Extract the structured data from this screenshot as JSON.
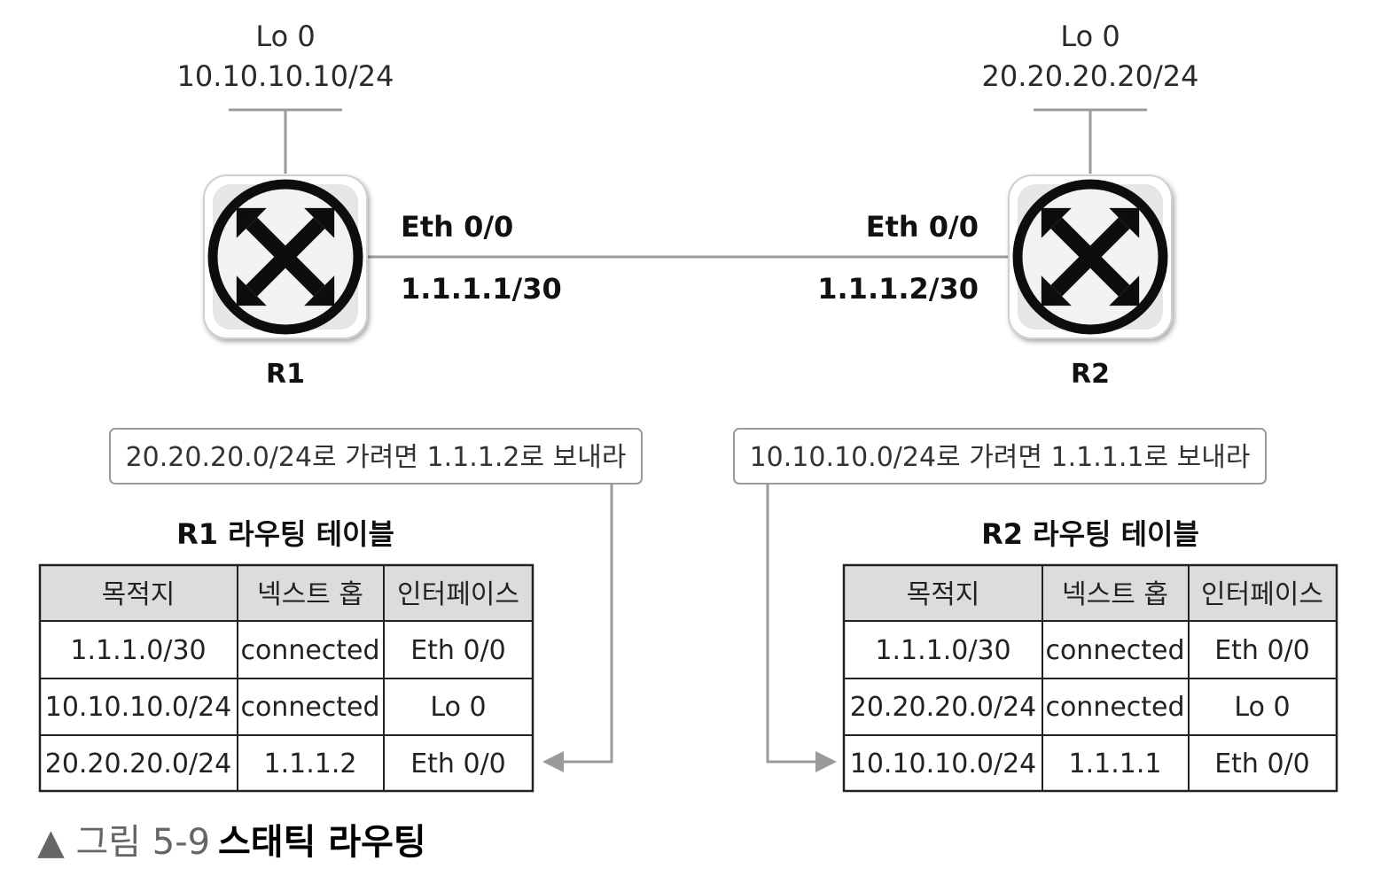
{
  "colors": {
    "line": "#9a9a9a",
    "router_ring": "#111111",
    "router_bg": "#e6e6e6",
    "table_header_bg": "#dcdcdc",
    "table_border": "#222222",
    "note_border": "#9a9a9a"
  },
  "r1": {
    "name": "R1",
    "loopback_label": "Lo 0",
    "loopback_ip": "10.10.10.10/24",
    "eth_label": "Eth 0/0",
    "eth_ip": "1.1.1.1/30",
    "icon": "router-icon"
  },
  "r2": {
    "name": "R2",
    "loopback_label": "Lo 0",
    "loopback_ip": "20.20.20.20/24",
    "eth_label": "Eth 0/0",
    "eth_ip": "1.1.1.2/30",
    "icon": "router-icon"
  },
  "notes": {
    "r1": "20.20.20.0/24로 가려면 1.1.1.2로 보내라",
    "r2": "10.10.10.0/24로 가려면 1.1.1.1로 보내라"
  },
  "tables": {
    "r1": {
      "title": "R1 라우팅 테이블",
      "headers": [
        "목적지",
        "넥스트 홉",
        "인터페이스"
      ],
      "rows": [
        [
          "1.1.1.0/30",
          "connected",
          "Eth 0/0"
        ],
        [
          "10.10.10.0/24",
          "connected",
          "Lo 0"
        ],
        [
          "20.20.20.0/24",
          "1.1.1.2",
          "Eth 0/0"
        ]
      ]
    },
    "r2": {
      "title": "R2 라우팅 테이블",
      "headers": [
        "목적지",
        "넥스트 홉",
        "인터페이스"
      ],
      "rows": [
        [
          "1.1.1.0/30",
          "connected",
          "Eth 0/0"
        ],
        [
          "20.20.20.0/24",
          "connected",
          "Lo 0"
        ],
        [
          "10.10.10.0/24",
          "1.1.1.1",
          "Eth 0/0"
        ]
      ]
    }
  },
  "caption": {
    "prefix": "▲ 그림 5-9",
    "title": "스태틱 라우팅"
  }
}
